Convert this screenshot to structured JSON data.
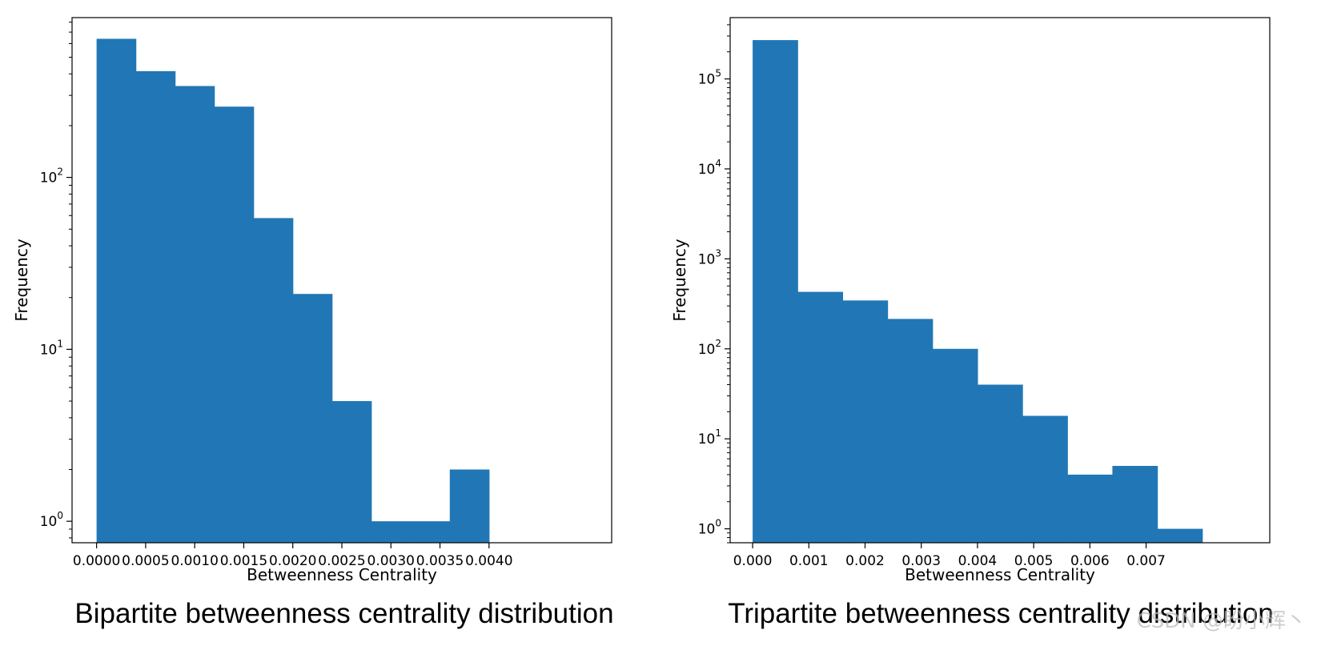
{
  "chart_data": [
    {
      "type": "bar",
      "title": "",
      "xlabel": "Betweenness Centrality",
      "ylabel": "Frequency",
      "yscale": "log",
      "ylim": [
        0.75,
        850
      ],
      "xlim": [
        -0.00025,
        0.00525
      ],
      "xticks": [
        "0.0000",
        "0.0005",
        "0.0010",
        "0.0015",
        "0.0020",
        "0.0025",
        "0.0030",
        "0.0035",
        "0.0040"
      ],
      "xtick_values": [
        0,
        0.0005,
        0.001,
        0.0015,
        0.002,
        0.0025,
        0.003,
        0.0035,
        0.004
      ],
      "yticks": [
        {
          "base": "10",
          "exp": "0",
          "value": 1
        },
        {
          "base": "10",
          "exp": "1",
          "value": 10
        },
        {
          "base": "10",
          "exp": "2",
          "value": 100
        }
      ],
      "bin_edges": [
        0,
        0.0004,
        0.0008,
        0.0012,
        0.0016,
        0.002,
        0.0024,
        0.0028,
        0.0032,
        0.0036,
        0.004
      ],
      "values": [
        640,
        415,
        340,
        258,
        58,
        21,
        5,
        1,
        1,
        2
      ],
      "bar_color": "#2177b5",
      "grid": false,
      "caption": "Bipartite betweenness centrality distribution"
    },
    {
      "type": "bar",
      "title": "",
      "xlabel": "Betweenness Centrality",
      "ylabel": "Frequency",
      "yscale": "log",
      "ylim": [
        0.7,
        480000
      ],
      "xlim": [
        -0.0004,
        0.0092
      ],
      "xticks": [
        "0.000",
        "0.001",
        "0.002",
        "0.003",
        "0.004",
        "0.005",
        "0.006",
        "0.007"
      ],
      "xtick_values": [
        0,
        0.001,
        0.002,
        0.003,
        0.004,
        0.005,
        0.006,
        0.007
      ],
      "yticks": [
        {
          "base": "10",
          "exp": "0",
          "value": 1
        },
        {
          "base": "10",
          "exp": "1",
          "value": 10
        },
        {
          "base": "10",
          "exp": "2",
          "value": 100
        },
        {
          "base": "10",
          "exp": "3",
          "value": 1000
        },
        {
          "base": "10",
          "exp": "4",
          "value": 10000
        },
        {
          "base": "10",
          "exp": "5",
          "value": 100000
        }
      ],
      "bin_edges": [
        0,
        0.0008,
        0.0016,
        0.0024,
        0.0032,
        0.004,
        0.0048,
        0.0056,
        0.0064,
        0.0072,
        0.008
      ],
      "values": [
        270000,
        430,
        345,
        215,
        100,
        40,
        18,
        4,
        5,
        1
      ],
      "bar_color": "#2177b5",
      "grid": false,
      "caption": "Tripartite betweenness centrality distribution"
    }
  ],
  "watermark": "CSDN @盼小辉丶"
}
